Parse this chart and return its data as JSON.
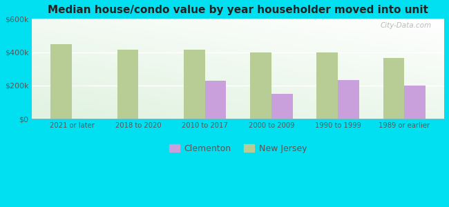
{
  "title": "Median house/condo value by year householder moved into unit",
  "categories": [
    "2021 or later",
    "2018 to 2020",
    "2010 to 2017",
    "2000 to 2009",
    "1990 to 1999",
    "1989 or earlier"
  ],
  "clementon_values": [
    null,
    null,
    230000,
    150000,
    232000,
    198000
  ],
  "nj_values": [
    450000,
    415000,
    415000,
    397000,
    397000,
    365000
  ],
  "clementon_color": "#c9a0dc",
  "nj_color": "#b8cc96",
  "background_outer": "#00e0f0",
  "ylim": [
    0,
    600000
  ],
  "yticks": [
    0,
    200000,
    400000,
    600000
  ],
  "ytick_labels": [
    "$0",
    "$200k",
    "$400k",
    "$600k"
  ],
  "bar_width": 0.32,
  "watermark": "City-Data.com",
  "legend_labels": [
    "Clementon",
    "New Jersey"
  ]
}
